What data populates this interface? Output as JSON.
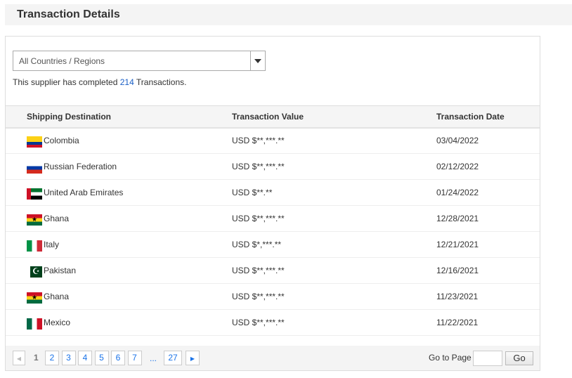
{
  "header": {
    "title": "Transaction Details"
  },
  "filter": {
    "selected": "All Countries / Regions"
  },
  "summary": {
    "prefix": "This supplier has completed ",
    "count": "214",
    "suffix": " Transactions."
  },
  "table": {
    "columns": [
      "Shipping Destination",
      "Transaction Value",
      "Transaction Date"
    ],
    "rows": [
      {
        "flag": "co",
        "country": "Colombia",
        "value": "USD $**,***.**",
        "date": "03/04/2022"
      },
      {
        "flag": "ru",
        "country": "Russian Federation",
        "value": "USD $**,***.**",
        "date": "02/12/2022"
      },
      {
        "flag": "ae",
        "country": "United Arab Emirates",
        "value": "USD $**.**",
        "date": "01/24/2022"
      },
      {
        "flag": "gh",
        "country": "Ghana",
        "value": "USD $**,***.**",
        "date": "12/28/2021"
      },
      {
        "flag": "it",
        "country": "Italy",
        "value": "USD $*,***.**",
        "date": "12/21/2021"
      },
      {
        "flag": "pk",
        "country": "Pakistan",
        "value": "USD $**,***.**",
        "date": "12/16/2021"
      },
      {
        "flag": "gh",
        "country": "Ghana",
        "value": "USD $**,***.**",
        "date": "11/23/2021"
      },
      {
        "flag": "mx",
        "country": "Mexico",
        "value": "USD $**,***.**",
        "date": "11/22/2021"
      }
    ]
  },
  "pagination": {
    "current": "1",
    "pages": [
      "2",
      "3",
      "4",
      "5",
      "6",
      "7"
    ],
    "ellipsis": "...",
    "last": "27",
    "goto_label": "Go to Page",
    "go_label": "Go",
    "goto_value": ""
  }
}
